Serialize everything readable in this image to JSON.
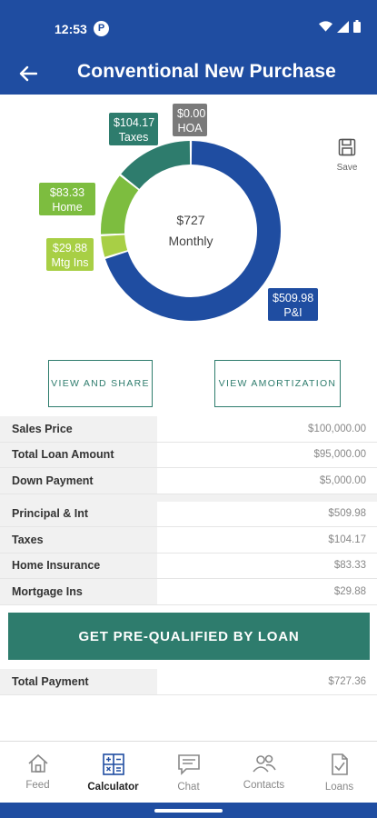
{
  "status": {
    "time": "12:53",
    "badge": "P"
  },
  "appbar": {
    "title": "Conventional New Purchase"
  },
  "chart": {
    "center_amount": "$727",
    "center_label": "Monthly",
    "save_label": "Save",
    "colors": {
      "pi": "#1f4da1",
      "taxes": "#2e7c6d",
      "home": "#7dbd3f",
      "mtg": "#a8cf45",
      "hoa": "#7a7a7a"
    }
  },
  "chart_data": {
    "type": "pie",
    "center_text": [
      "$727",
      "Monthly"
    ],
    "slices": [
      {
        "label": "P&I",
        "value": 509.98,
        "display": "$509.98",
        "color": "#1f4da1"
      },
      {
        "label": "Mtg Ins",
        "value": 29.88,
        "display": "$29.88",
        "color": "#a8cf45"
      },
      {
        "label": "Home Ins",
        "value": 83.33,
        "display": "$83.33",
        "color": "#7dbd3f"
      },
      {
        "label": "Taxes",
        "value": 104.17,
        "display": "$104.17",
        "color": "#2e7c6d"
      },
      {
        "label": "HOA",
        "value": 0.0,
        "display": "$0.00",
        "color": "#7a7a7a"
      }
    ]
  },
  "actions": {
    "view_share": "VIEW AND SHARE",
    "view_amortization": "VIEW AMORTIZATION",
    "cta": "GET PRE-QUALIFIED BY LOAN"
  },
  "loan_rows": [
    {
      "label": "Sales Price",
      "value": "$100,000.00"
    },
    {
      "label": "Total Loan Amount",
      "value": "$95,000.00"
    },
    {
      "label": "Down Payment",
      "value": "$5,000.00"
    }
  ],
  "payment_rows": [
    {
      "label": "Principal & Int",
      "value": "$509.98"
    },
    {
      "label": "Taxes",
      "value": "$104.17"
    },
    {
      "label": "Home Insurance",
      "value": "$83.33"
    },
    {
      "label": "Mortgage Ins",
      "value": "$29.88"
    }
  ],
  "total_row": {
    "label": "Total Payment",
    "value": "$727.36"
  },
  "nav": [
    {
      "label": "Feed",
      "icon": "home-icon",
      "active": false
    },
    {
      "label": "Calculator",
      "icon": "calculator-icon",
      "active": true
    },
    {
      "label": "Chat",
      "icon": "chat-icon",
      "active": false
    },
    {
      "label": "Contacts",
      "icon": "contacts-icon",
      "active": false
    },
    {
      "label": "Loans",
      "icon": "loans-icon",
      "active": false
    }
  ]
}
